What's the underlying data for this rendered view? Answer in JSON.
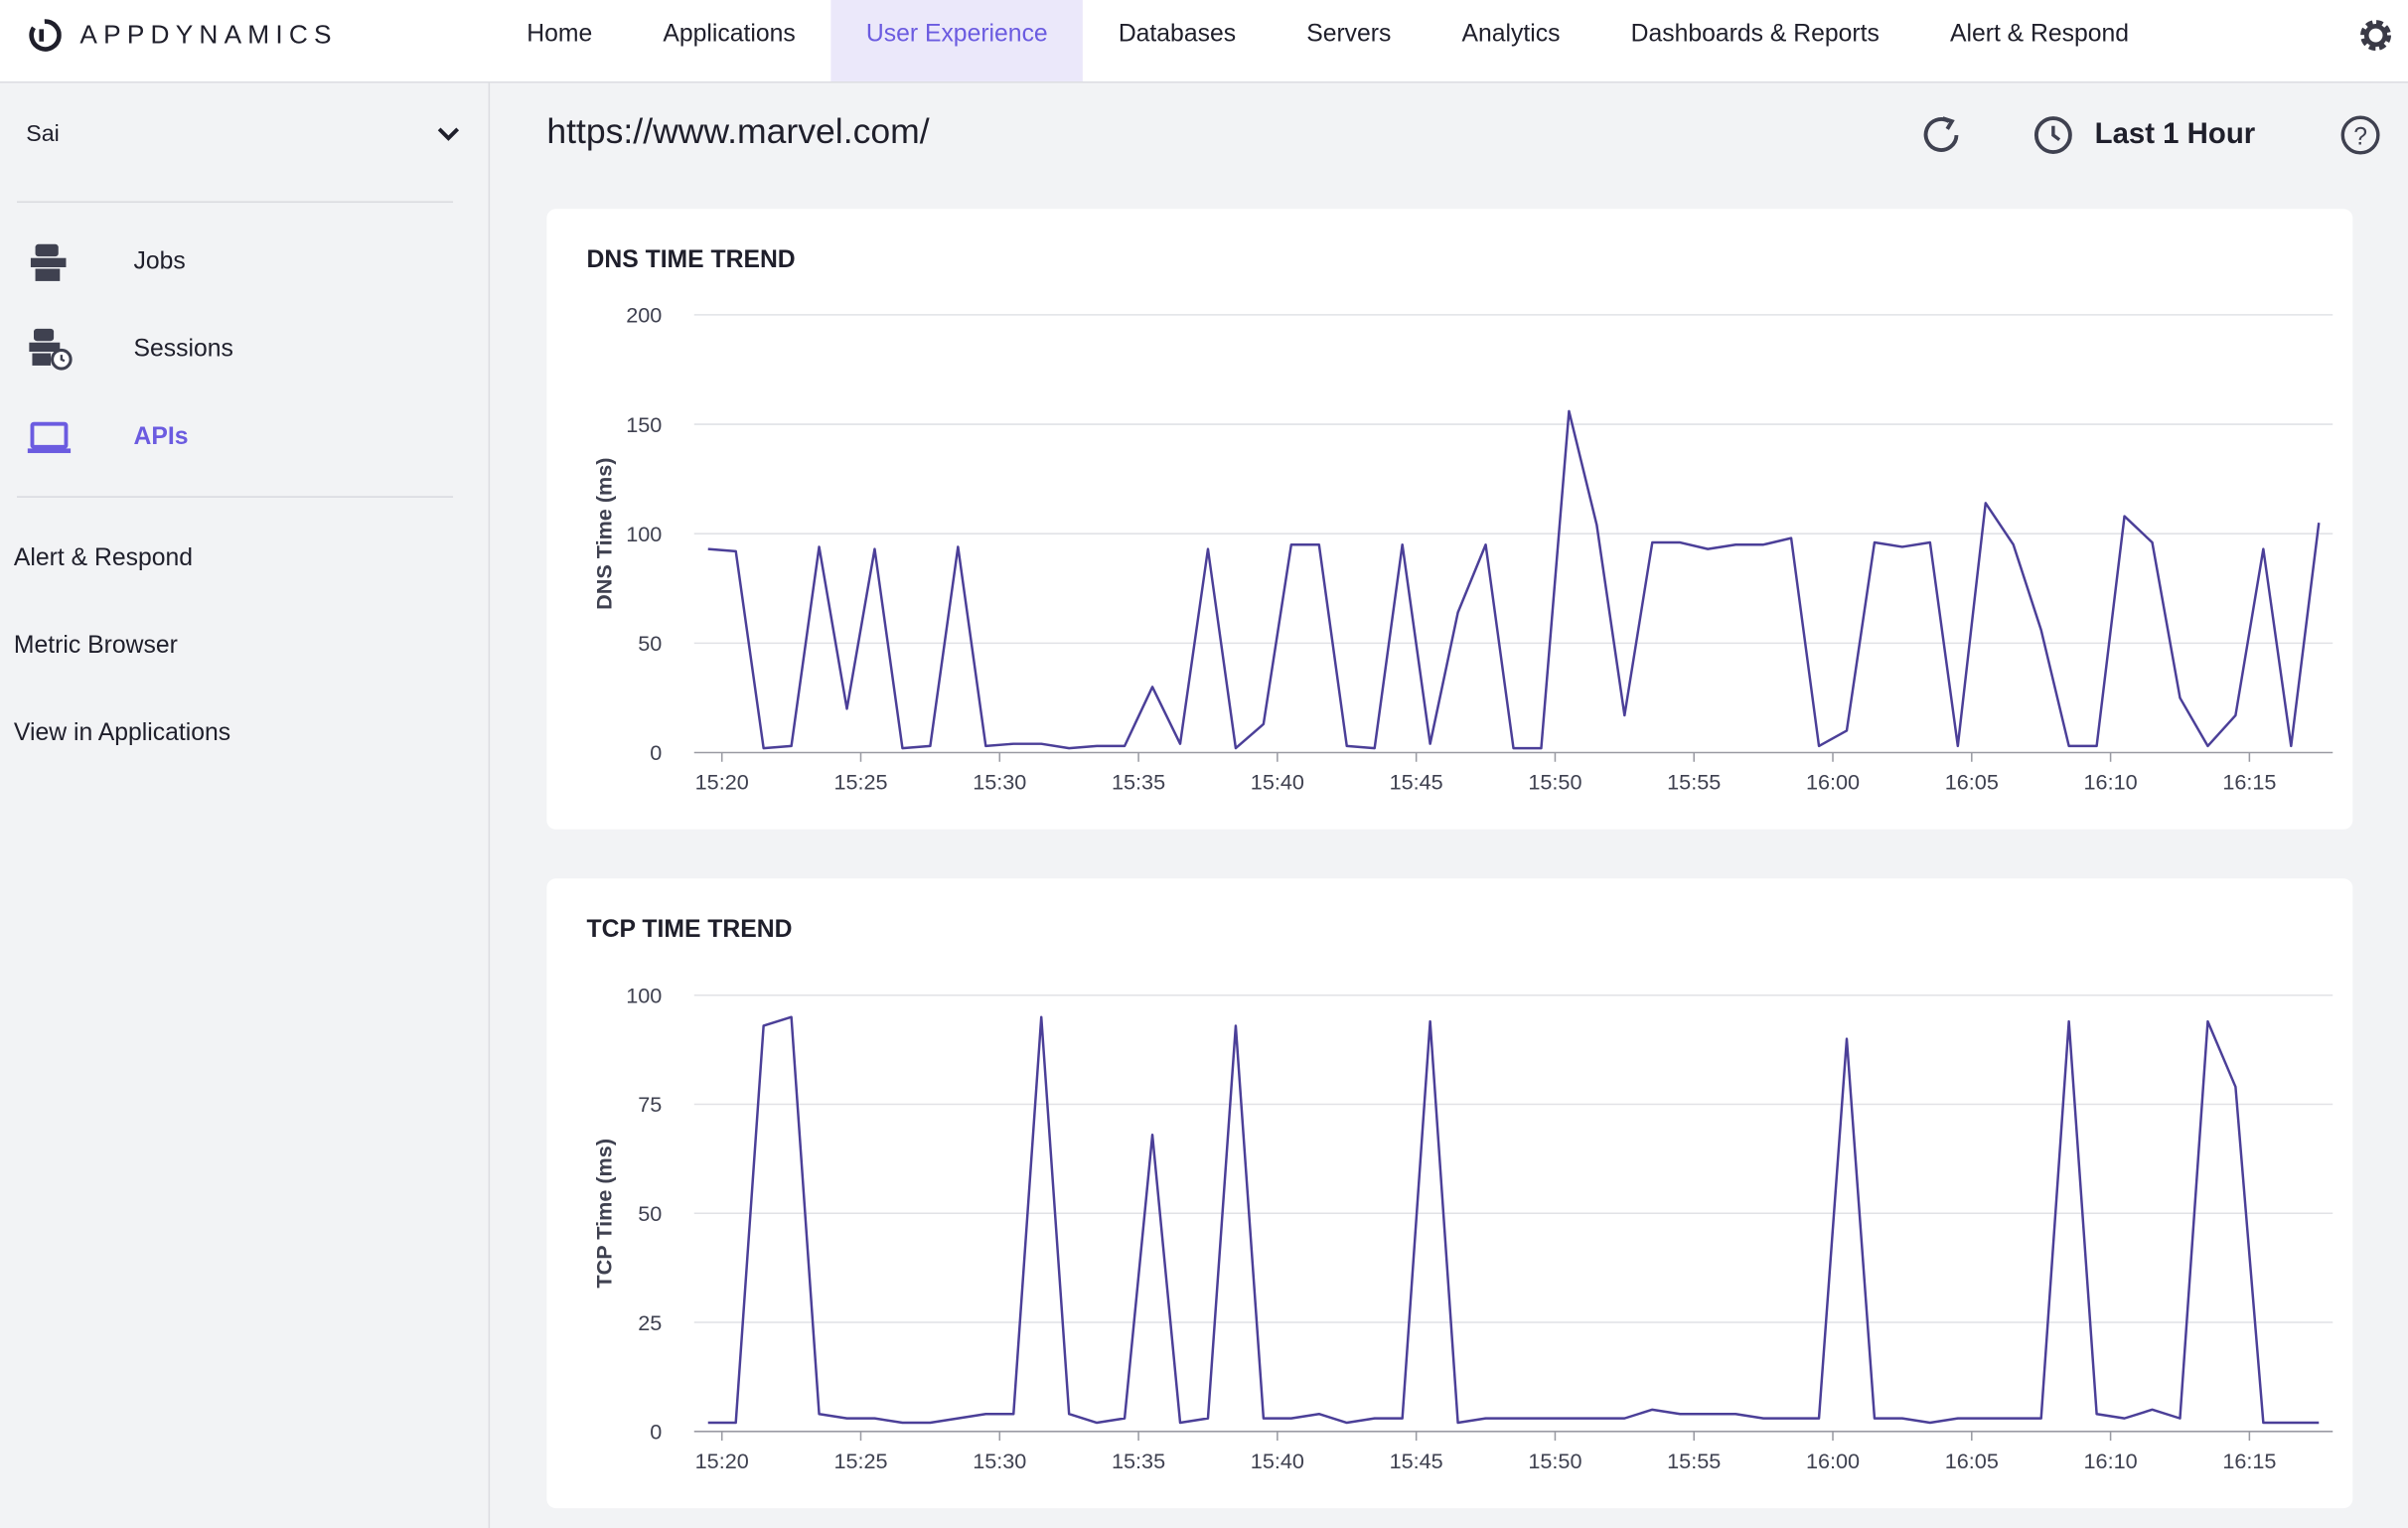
{
  "nav": {
    "logo": "APPDYNAMICS",
    "items": [
      "Home",
      "Applications",
      "User Experience",
      "Databases",
      "Servers",
      "Analytics",
      "Dashboards & Reports",
      "Alert & Respond"
    ]
  },
  "sidebar": {
    "app": "Sai",
    "items": [
      "Jobs",
      "Sessions",
      "APIs"
    ],
    "links": [
      "Alert & Respond",
      "Metric Browser",
      "View in Applications"
    ]
  },
  "header": {
    "url": "https://www.marvel.com/",
    "time_range": "Last 1 Hour"
  },
  "chart_data": [
    {
      "type": "line",
      "title": "DNS TIME TREND",
      "y_label": "DNS Time (ms)",
      "color": "#4b3f98",
      "grid": true,
      "x": [
        919.5,
        920.5,
        921.5,
        922.5,
        923.5,
        924.5,
        925.5,
        926.5,
        927.5,
        928.5,
        929.5,
        930.5,
        931.5,
        932.5,
        933.5,
        934.5,
        935.5,
        936.5,
        937.5,
        938.5,
        939.5,
        940.5,
        941.5,
        942.5,
        943.5,
        944.5,
        945.5,
        946.5,
        947.5,
        948.5,
        949.5,
        950.5,
        951.5,
        952.5,
        953.5,
        954.5,
        955.5,
        956.5,
        957.5,
        958.5,
        959.5,
        960.5,
        961.5,
        962.5,
        963.5,
        964.5,
        965.5,
        966.5,
        967.5,
        968.5,
        969.5,
        970.5,
        971.5,
        972.5,
        973.5,
        974.5,
        975.5,
        976.5,
        977.5
      ],
      "values": [
        93,
        92,
        2,
        3,
        94,
        20,
        93,
        2,
        3,
        94,
        3,
        4,
        4,
        2,
        3,
        3,
        30,
        4,
        93,
        2,
        13,
        95,
        95,
        3,
        2,
        95,
        4,
        64,
        95,
        2,
        2,
        156,
        104,
        17,
        96,
        96,
        93,
        95,
        95,
        98,
        3,
        10,
        96,
        94,
        96,
        3,
        114,
        95,
        56,
        3,
        3,
        108,
        96,
        25,
        3,
        17,
        93,
        3,
        105
      ],
      "xlim": [
        919,
        978
      ],
      "ylim": [
        0,
        200
      ],
      "yticks": [
        0,
        50,
        100,
        150,
        200
      ],
      "xticks": [
        {
          "value": 920,
          "label": "15:20"
        },
        {
          "value": 925,
          "label": "15:25"
        },
        {
          "value": 930,
          "label": "15:30"
        },
        {
          "value": 935,
          "label": "15:35"
        },
        {
          "value": 940,
          "label": "15:40"
        },
        {
          "value": 945,
          "label": "15:45"
        },
        {
          "value": 950,
          "label": "15:50"
        },
        {
          "value": 955,
          "label": "15:55"
        },
        {
          "value": 960,
          "label": "16:00"
        },
        {
          "value": 965,
          "label": "16:05"
        },
        {
          "value": 970,
          "label": "16:10"
        },
        {
          "value": 975,
          "label": "16:15"
        }
      ]
    },
    {
      "type": "line",
      "title": "TCP TIME TREND",
      "y_label": "TCP Time (ms)",
      "color": "#4b3f98",
      "grid": true,
      "x": [
        919.5,
        920.5,
        921.5,
        922.5,
        923.5,
        924.5,
        925.5,
        926.5,
        927.5,
        928.5,
        929.5,
        930.5,
        931.5,
        932.5,
        933.5,
        934.5,
        935.5,
        936.5,
        937.5,
        938.5,
        939.5,
        940.5,
        941.5,
        942.5,
        943.5,
        944.5,
        945.5,
        946.5,
        947.5,
        948.5,
        949.5,
        950.5,
        951.5,
        952.5,
        953.5,
        954.5,
        955.5,
        956.5,
        957.5,
        958.5,
        959.5,
        960.5,
        961.5,
        962.5,
        963.5,
        964.5,
        965.5,
        966.5,
        967.5,
        968.5,
        969.5,
        970.5,
        971.5,
        972.5,
        973.5,
        974.5,
        975.5,
        976.5,
        977.5
      ],
      "values": [
        2,
        2,
        93,
        95,
        4,
        3,
        3,
        2,
        2,
        3,
        4,
        4,
        95,
        4,
        2,
        3,
        68,
        2,
        3,
        93,
        3,
        3,
        4,
        2,
        3,
        3,
        94,
        2,
        3,
        3,
        3,
        3,
        3,
        3,
        5,
        4,
        4,
        4,
        3,
        3,
        3,
        90,
        3,
        3,
        2,
        3,
        3,
        3,
        3,
        94,
        4,
        3,
        5,
        3,
        94,
        79,
        2,
        2,
        2
      ],
      "xlim": [
        919,
        978
      ],
      "ylim": [
        0,
        100
      ],
      "yticks": [
        0,
        25,
        50,
        75,
        100
      ],
      "xticks": [
        {
          "value": 920,
          "label": "15:20"
        },
        {
          "value": 925,
          "label": "15:25"
        },
        {
          "value": 930,
          "label": "15:30"
        },
        {
          "value": 935,
          "label": "15:35"
        },
        {
          "value": 940,
          "label": "15:40"
        },
        {
          "value": 945,
          "label": "15:45"
        },
        {
          "value": 950,
          "label": "15:50"
        },
        {
          "value": 955,
          "label": "15:55"
        },
        {
          "value": 960,
          "label": "16:00"
        },
        {
          "value": 965,
          "label": "16:05"
        },
        {
          "value": 970,
          "label": "16:10"
        },
        {
          "value": 975,
          "label": "16:15"
        }
      ]
    }
  ]
}
